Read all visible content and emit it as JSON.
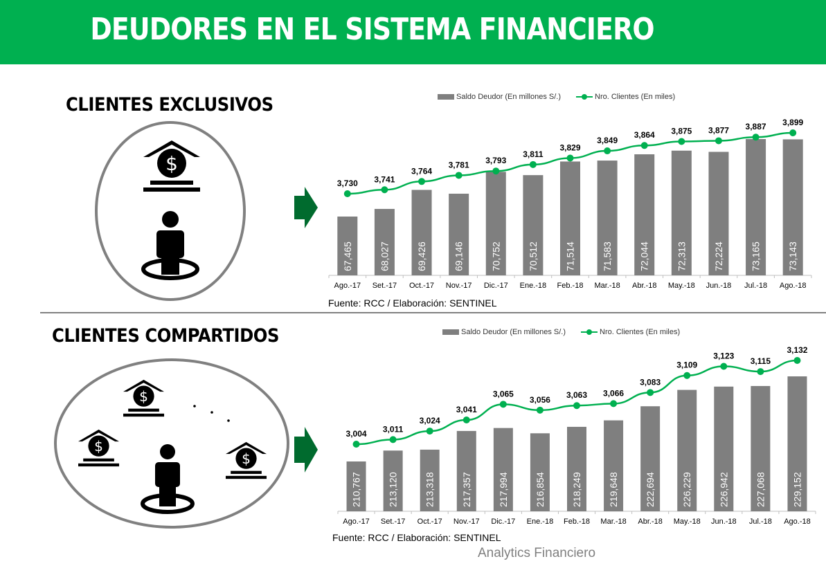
{
  "header": {
    "title": "DEUDORES EN EL SISTEMA FINANCIERO",
    "bg_color": "#00B050"
  },
  "sections": [
    {
      "title": "CLIENTES EXCLUSIVOS",
      "source": "Fuente: RCC / Elaboración: SENTINEL"
    },
    {
      "title": "CLIENTES COMPARTIDOS",
      "source": "Fuente: RCC / Elaboración: SENTINEL"
    }
  ],
  "legend": {
    "bar_label": "Saldo Deudor (En millones S/.)",
    "line_label": "Nro. Clientes (En miles)"
  },
  "icons": {
    "exclusive": [
      "bank-icon",
      "person-icon"
    ],
    "shared": [
      "bank-icon",
      "bank-icon",
      "bank-icon",
      "person-icon",
      "ellipsis-dots"
    ]
  },
  "watermark": "Analytics Financiero",
  "colors": {
    "bar": "#7F7F7F",
    "line": "#00B050",
    "arrow": "#006B2E",
    "ellipse_border": "#808080"
  },
  "chart_data": [
    {
      "type": "bar",
      "title": "CLIENTES EXCLUSIVOS",
      "categories": [
        "Ago.-17",
        "Set.-17",
        "Oct.-17",
        "Nov.-17",
        "Dic.-17",
        "Ene.-18",
        "Feb.-18",
        "Mar.-18",
        "Abr.-18",
        "May.-18",
        "Jun.-18",
        "Jul.-18",
        "Ago.-18"
      ],
      "series": [
        {
          "name": "Saldo Deudor (En millones S/.)",
          "type": "bar",
          "values": [
            67465,
            68027,
            69426,
            69146,
            70752,
            70512,
            71514,
            71583,
            72044,
            72313,
            72224,
            73165,
            73143
          ],
          "labels": [
            "67,465",
            "68,027",
            "69,426",
            "69,146",
            "70,752",
            "70,512",
            "71,514",
            "71,583",
            "72,044",
            "72,313",
            "72,224",
            "73,165",
            "73,143"
          ]
        },
        {
          "name": "Nro. Clientes (En miles)",
          "type": "line",
          "values": [
            3730,
            3741,
            3764,
            3781,
            3793,
            3811,
            3829,
            3849,
            3864,
            3875,
            3877,
            3887,
            3899
          ],
          "labels": [
            "3,730",
            "3,741",
            "3,764",
            "3,781",
            "3,793",
            "3,811",
            "3,829",
            "3,849",
            "3,864",
            "3,875",
            "3,877",
            "3,887",
            "3,899"
          ]
        }
      ],
      "xlabel": "",
      "ylabel": "",
      "grid": false,
      "legend_position": "top",
      "source": "Fuente: RCC / Elaboración: SENTINEL"
    },
    {
      "type": "bar",
      "title": "CLIENTES COMPARTIDOS",
      "categories": [
        "Ago.-17",
        "Set.-17",
        "Oct.-17",
        "Nov.-17",
        "Dic.-17",
        "Ene.-18",
        "Feb.-18",
        "Mar.-18",
        "Abr.-18",
        "May.-18",
        "Jun.-18",
        "Jul.-18",
        "Ago.-18"
      ],
      "series": [
        {
          "name": "Saldo Deudor (En millones S/.)",
          "type": "bar",
          "values": [
            210767,
            213120,
            213318,
            217357,
            217994,
            216854,
            218249,
            219648,
            222694,
            226229,
            226942,
            227068,
            229152
          ],
          "labels": [
            "210,767",
            "213,120",
            "213,318",
            "217,357",
            "217,994",
            "216,854",
            "218,249",
            "219,648",
            "222,694",
            "226,229",
            "226,942",
            "227,068",
            "229,152"
          ]
        },
        {
          "name": "Nro. Clientes (En miles)",
          "type": "line",
          "values": [
            3004,
            3011,
            3024,
            3041,
            3065,
            3056,
            3063,
            3066,
            3083,
            3109,
            3123,
            3115,
            3132
          ],
          "labels": [
            "3,004",
            "3,011",
            "3,024",
            "3,041",
            "3,065",
            "3,056",
            "3,063",
            "3,066",
            "3,083",
            "3,109",
            "3,123",
            "3,115",
            "3,132"
          ]
        }
      ],
      "xlabel": "",
      "ylabel": "",
      "grid": false,
      "legend_position": "top",
      "source": "Fuente: RCC / Elaboración: SENTINEL"
    }
  ]
}
